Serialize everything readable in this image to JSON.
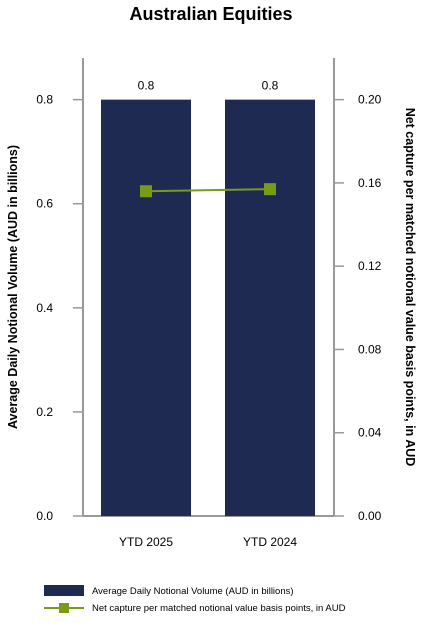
{
  "chart_data": {
    "type": "bar",
    "title": "Australian Equities",
    "categories": [
      "YTD 2025",
      "YTD 2024"
    ],
    "series": [
      {
        "name": "Average Daily Notional Volume (AUD in billions)",
        "type": "bar",
        "axis": "left",
        "values": [
          0.8,
          0.8
        ],
        "data_labels": [
          "0.8",
          "0.8"
        ],
        "color": "#1f2a52"
      },
      {
        "name": "Net capture per matched notional value basis points, in AUD",
        "type": "line",
        "axis": "right",
        "values": [
          0.156,
          0.157
        ],
        "color": "#7a9a1a"
      }
    ],
    "y_left": {
      "label": "Average Daily Notional Volume (AUD in billions)",
      "range": [
        0,
        0.88
      ],
      "ticks": [
        0.0,
        0.2,
        0.4,
        0.6,
        0.8
      ],
      "tick_labels": [
        "0.0",
        "0.2",
        "0.4",
        "0.6",
        "0.8"
      ]
    },
    "y_right": {
      "label": "Net capture per matched notional value basis points, in AUD",
      "range": [
        0,
        0.22
      ],
      "ticks": [
        0.0,
        0.04,
        0.08,
        0.12,
        0.16,
        0.2
      ],
      "tick_labels": [
        "0.00",
        "0.04",
        "0.08",
        "0.12",
        "0.16",
        "0.20"
      ]
    },
    "grid": false,
    "legend_position": "bottom-left"
  }
}
